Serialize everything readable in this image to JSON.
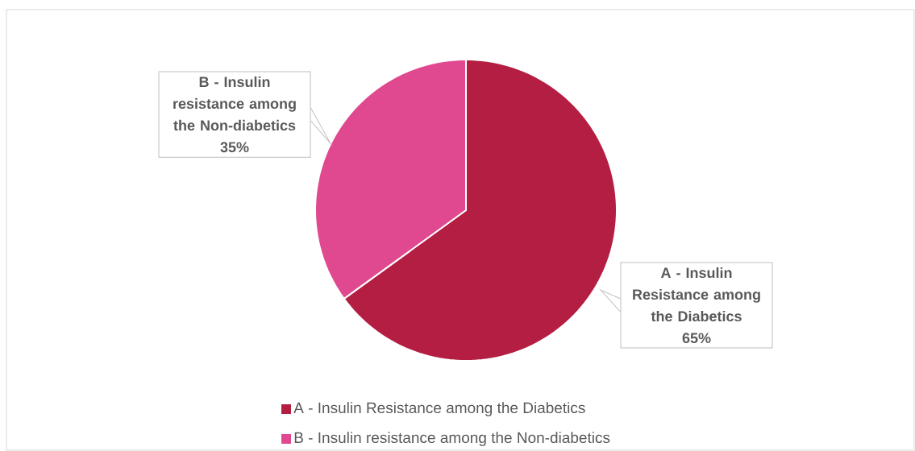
{
  "chart_data": {
    "type": "pie",
    "categories": [
      "A - Insulin Resistance among the Diabetics",
      "B - Insulin resistance among the Non-diabetics"
    ],
    "values": [
      65,
      35
    ],
    "colors": [
      "#b41e43",
      "#e0498f"
    ],
    "value_labels": [
      "65%",
      "35%"
    ],
    "legend": "bottom"
  }
}
